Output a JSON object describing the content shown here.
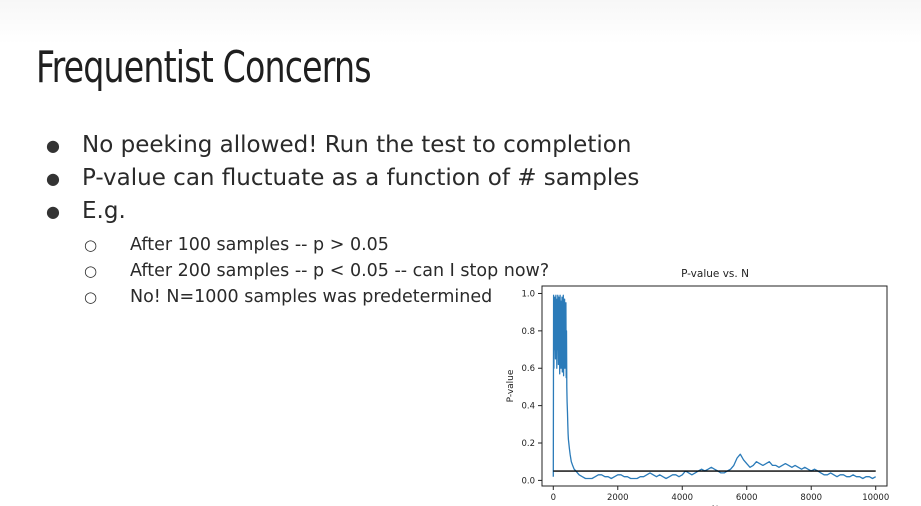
{
  "slide": {
    "title": "Frequentist Concerns",
    "bullets": [
      "No peeking allowed! Run the test to completion",
      "P-value can fluctuate as a function of # samples",
      "E.g."
    ],
    "sub_bullets": [
      "After 100 samples -- p > 0.05",
      "After 200 samples -- p < 0.05 -- can I stop now?",
      "No! N=1000 samples was predetermined"
    ]
  },
  "chart_data": {
    "type": "line",
    "title": "P-value vs. N",
    "xlabel": "N",
    "ylabel": "P-value",
    "xlim": [
      -350,
      10350
    ],
    "ylim": [
      -0.03,
      1.04
    ],
    "xticks": [
      0,
      2000,
      4000,
      6000,
      8000,
      10000
    ],
    "yticks": [
      0.0,
      0.2,
      0.4,
      0.6,
      0.8,
      1.0
    ],
    "xtick_labels": [
      "0",
      "2000",
      "4000",
      "6000",
      "8000",
      "10000"
    ],
    "ytick_labels": [
      "0.0",
      "0.2",
      "0.4",
      "0.6",
      "0.8",
      "1.0"
    ],
    "grid": false,
    "colors": {
      "series": "#2b7bb9",
      "threshold": "#000000"
    },
    "threshold": {
      "y": 0.05,
      "x": [
        0,
        10000
      ]
    },
    "series": [
      {
        "x": [
          0,
          10,
          20,
          30,
          40,
          50,
          60,
          70,
          80,
          90,
          100,
          110,
          120,
          130,
          140,
          150,
          160,
          170,
          180,
          190,
          200,
          210,
          220,
          230,
          240,
          250,
          260,
          270,
          280,
          290,
          300,
          310,
          320,
          330,
          340,
          350,
          360,
          370,
          380,
          390,
          400,
          410,
          420,
          430,
          440,
          450,
          460,
          470,
          480,
          500,
          520,
          540,
          560,
          580,
          600,
          650,
          700,
          750,
          800,
          900,
          1000,
          1100,
          1200,
          1300,
          1400,
          1500,
          1600,
          1700,
          1800,
          1900,
          2000,
          2100,
          2200,
          2300,
          2400,
          2500,
          2600,
          2700,
          2800,
          2900,
          3000,
          3100,
          3200,
          3300,
          3400,
          3500,
          3600,
          3700,
          3800,
          3900,
          4000,
          4100,
          4200,
          4300,
          4400,
          4500,
          4600,
          4700,
          4800,
          4900,
          5000,
          5100,
          5200,
          5300,
          5400,
          5500,
          5600,
          5700,
          5800,
          5900,
          6000,
          6100,
          6200,
          6300,
          6400,
          6500,
          6600,
          6700,
          6800,
          6900,
          7000,
          7100,
          7200,
          7300,
          7400,
          7500,
          7600,
          7700,
          7800,
          7900,
          8000,
          8100,
          8200,
          8300,
          8400,
          8500,
          8600,
          8700,
          8800,
          8900,
          9000,
          9100,
          9200,
          9300,
          9400,
          9500,
          9600,
          9700,
          9800,
          9900,
          10000
        ],
        "values": [
          0.02,
          0.99,
          0.6,
          0.95,
          0.7,
          0.98,
          0.8,
          0.65,
          0.99,
          0.75,
          0.9,
          0.6,
          0.97,
          0.7,
          0.99,
          0.8,
          0.62,
          0.98,
          0.72,
          0.92,
          0.57,
          0.99,
          0.68,
          0.96,
          0.6,
          0.9,
          0.75,
          0.98,
          0.58,
          0.94,
          0.65,
          0.99,
          0.56,
          0.88,
          0.7,
          0.97,
          0.6,
          0.85,
          0.66,
          0.95,
          0.55,
          0.8,
          0.5,
          0.42,
          0.36,
          0.3,
          0.25,
          0.22,
          0.2,
          0.17,
          0.14,
          0.12,
          0.1,
          0.09,
          0.08,
          0.06,
          0.05,
          0.04,
          0.03,
          0.02,
          0.01,
          0.01,
          0.01,
          0.02,
          0.03,
          0.03,
          0.02,
          0.02,
          0.01,
          0.02,
          0.03,
          0.03,
          0.02,
          0.02,
          0.01,
          0.01,
          0.01,
          0.02,
          0.02,
          0.03,
          0.04,
          0.03,
          0.02,
          0.03,
          0.02,
          0.01,
          0.02,
          0.03,
          0.03,
          0.02,
          0.03,
          0.05,
          0.04,
          0.03,
          0.04,
          0.05,
          0.06,
          0.05,
          0.06,
          0.07,
          0.06,
          0.05,
          0.04,
          0.04,
          0.05,
          0.06,
          0.08,
          0.12,
          0.14,
          0.11,
          0.09,
          0.07,
          0.08,
          0.1,
          0.09,
          0.08,
          0.09,
          0.1,
          0.08,
          0.08,
          0.07,
          0.08,
          0.09,
          0.08,
          0.07,
          0.08,
          0.07,
          0.06,
          0.07,
          0.06,
          0.05,
          0.06,
          0.05,
          0.04,
          0.03,
          0.03,
          0.04,
          0.03,
          0.02,
          0.03,
          0.03,
          0.02,
          0.02,
          0.03,
          0.02,
          0.02,
          0.01,
          0.02,
          0.02,
          0.01,
          0.02
        ]
      }
    ]
  }
}
